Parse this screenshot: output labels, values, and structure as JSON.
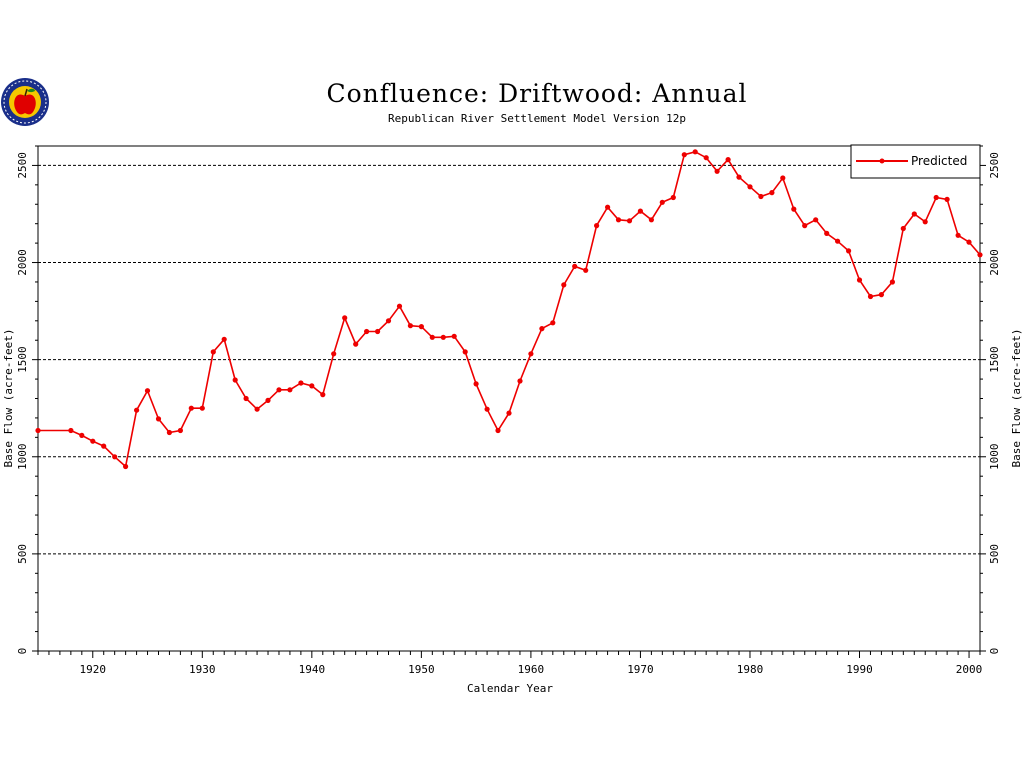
{
  "colors": {
    "series": "#ee0000",
    "axis": "#000000",
    "grid": "#000000"
  },
  "logo": {
    "icon": "apple-seal-icon"
  },
  "chart_data": {
    "type": "line",
    "title": "Confluence: Driftwood: Annual",
    "subtitle": "Republican River Settlement Model Version 12p",
    "xlabel": "Calendar Year",
    "ylabel": "Base Flow (acre-feet)",
    "ylabel_right": "Base Flow (acre-feet)",
    "xlim": [
      1915,
      2001
    ],
    "ylim": [
      0,
      2600
    ],
    "x_ticks": [
      1920,
      1930,
      1940,
      1950,
      1960,
      1970,
      1980,
      1990,
      2000
    ],
    "y_ticks": [
      0,
      500,
      1000,
      1500,
      2000,
      2500
    ],
    "grid": "horizontal dashed at 500, 1000, 1500, 2000, 2500",
    "legend_position": "top-right",
    "series": [
      {
        "name": "Predicted",
        "color": "#ee0000",
        "x": [
          1915,
          1918,
          1919,
          1920,
          1921,
          1922,
          1923,
          1924,
          1925,
          1926,
          1927,
          1928,
          1929,
          1930,
          1931,
          1932,
          1933,
          1934,
          1935,
          1936,
          1937,
          1938,
          1939,
          1940,
          1941,
          1942,
          1943,
          1944,
          1945,
          1946,
          1947,
          1948,
          1949,
          1950,
          1951,
          1952,
          1953,
          1954,
          1955,
          1956,
          1957,
          1958,
          1959,
          1960,
          1961,
          1962,
          1963,
          1964,
          1965,
          1966,
          1967,
          1968,
          1969,
          1970,
          1971,
          1972,
          1973,
          1974,
          1975,
          1976,
          1977,
          1978,
          1979,
          1980,
          1981,
          1982,
          1983,
          1984,
          1985,
          1986,
          1987,
          1988,
          1989,
          1990,
          1991,
          1992,
          1993,
          1994,
          1995,
          1996,
          1997,
          1998,
          1999,
          2000,
          2001
        ],
        "y": [
          1135,
          1135,
          1110,
          1080,
          1055,
          1000,
          950,
          1240,
          1340,
          1195,
          1125,
          1135,
          1250,
          1250,
          1540,
          1605,
          1395,
          1300,
          1245,
          1290,
          1345,
          1345,
          1380,
          1365,
          1320,
          1530,
          1715,
          1580,
          1645,
          1645,
          1700,
          1775,
          1675,
          1670,
          1615,
          1615,
          1620,
          1540,
          1375,
          1245,
          1135,
          1225,
          1390,
          1530,
          1660,
          1690,
          1885,
          1980,
          1960,
          2190,
          2285,
          2220,
          2215,
          2265,
          2220,
          2310,
          2335,
          2555,
          2570,
          2540,
          2470,
          2530,
          2440,
          2390,
          2340,
          2360,
          2435,
          2275,
          2190,
          2220,
          2150,
          2110,
          2060,
          1910,
          1825,
          1835,
          1900,
          2175,
          2250,
          2210,
          2335,
          2325,
          2140,
          2105,
          2040
        ]
      }
    ]
  }
}
